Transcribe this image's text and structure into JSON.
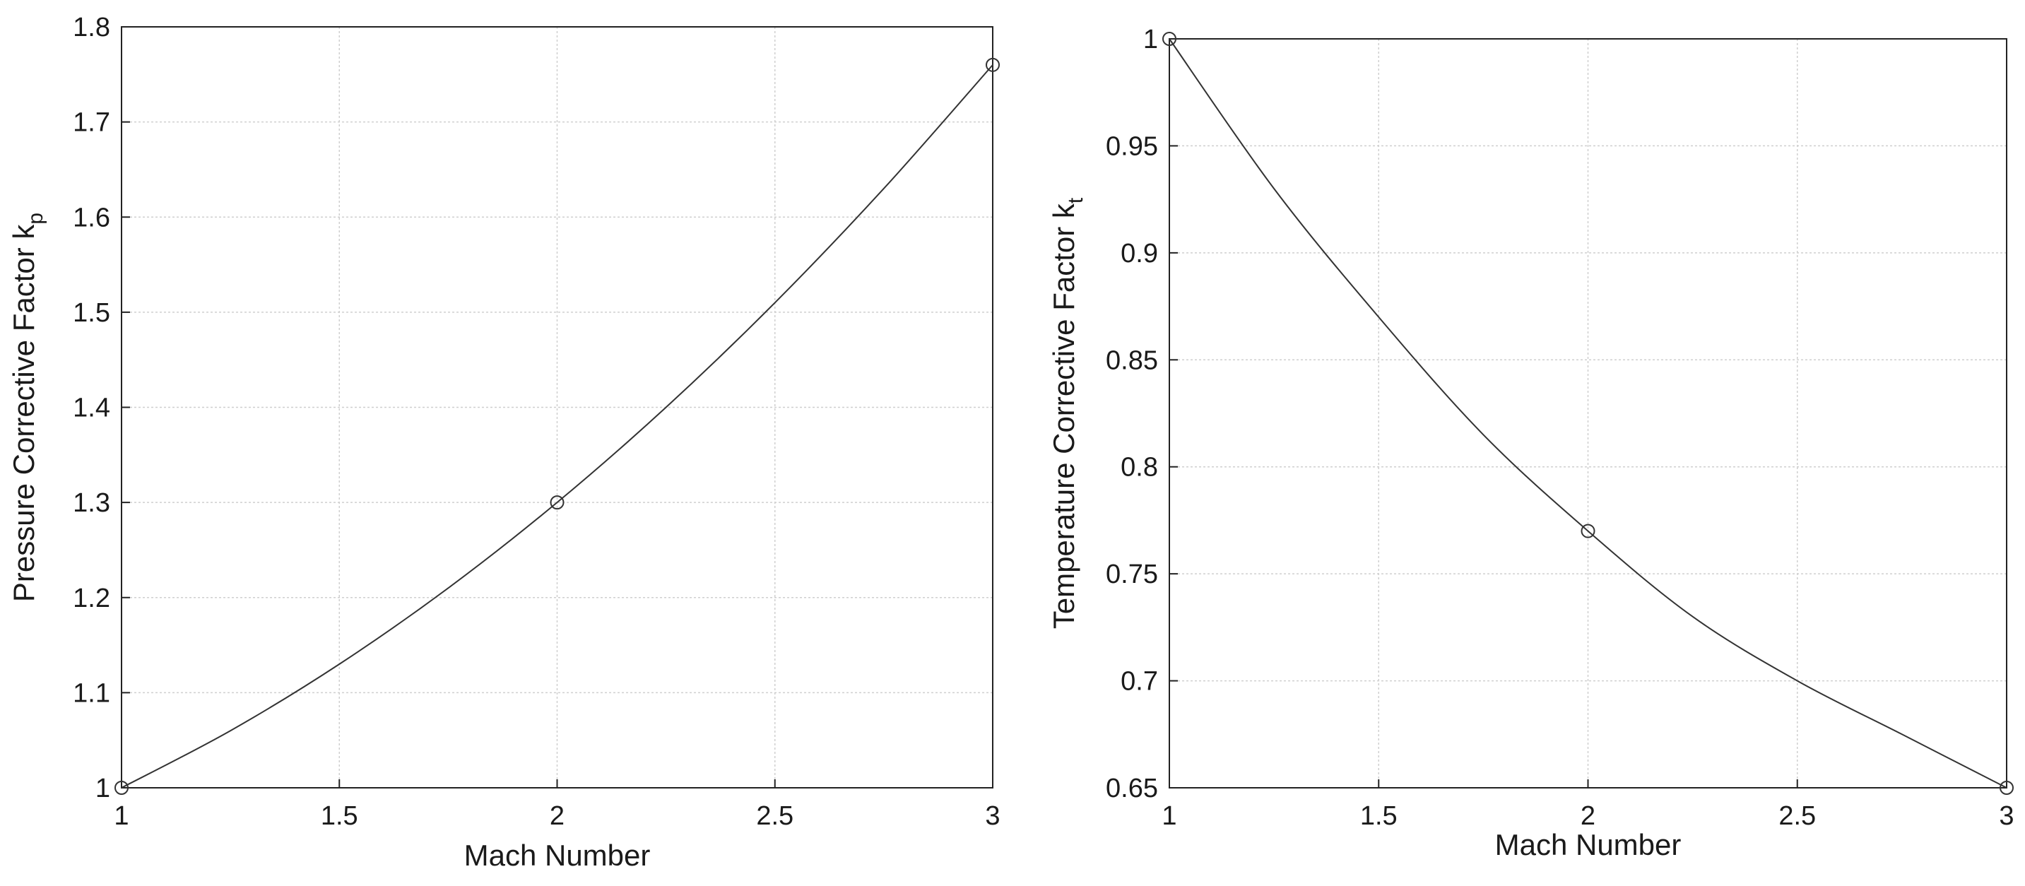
{
  "chart_data": [
    {
      "type": "line",
      "xlabel": "Mach Number",
      "ylabel": "Pressure Corrective Factor k",
      "ylabel_subscript": "p",
      "xlim": [
        1,
        3
      ],
      "ylim": [
        1,
        1.8
      ],
      "xticks": [
        1,
        1.5,
        2,
        2.5,
        3
      ],
      "xtick_labels": [
        "1",
        "1.5",
        "2",
        "2.5",
        "3"
      ],
      "yticks": [
        1,
        1.1,
        1.2,
        1.3,
        1.4,
        1.5,
        1.6,
        1.7,
        1.8
      ],
      "ytick_labels": [
        "1",
        "1.1",
        "1.2",
        "1.3",
        "1.4",
        "1.5",
        "1.6",
        "1.7",
        "1.8"
      ],
      "grid": true,
      "series": [
        {
          "x": [
            1.0,
            1.25,
            1.5,
            1.75,
            2.0,
            2.25,
            2.5,
            2.75,
            3.0
          ],
          "values": [
            1.0,
            1.06,
            1.13,
            1.21,
            1.3,
            1.4,
            1.51,
            1.63,
            1.76
          ],
          "markers": {
            "x": [
              1,
              2,
              3
            ],
            "y": [
              1.0,
              1.3,
              1.76
            ],
            "shape": "circle"
          }
        }
      ]
    },
    {
      "type": "line",
      "xlabel": "Mach Number",
      "ylabel": "Temperature Corrective Factor k",
      "ylabel_subscript": "t",
      "xlim": [
        1,
        3
      ],
      "ylim": [
        0.65,
        1.0
      ],
      "xticks": [
        1,
        1.5,
        2,
        2.5,
        3
      ],
      "xtick_labels": [
        "1",
        "1.5",
        "2",
        "2.5",
        "3"
      ],
      "yticks": [
        0.65,
        0.7,
        0.75,
        0.8,
        0.85,
        0.9,
        0.95,
        1.0
      ],
      "ytick_labels": [
        "0.65",
        "0.7",
        "0.75",
        "0.8",
        "0.85",
        "0.9",
        "0.95",
        "1"
      ],
      "grid": true,
      "series": [
        {
          "x": [
            1.0,
            1.25,
            1.5,
            1.75,
            2.0,
            2.25,
            2.5,
            2.75,
            3.0
          ],
          "values": [
            1.0,
            0.93,
            0.87,
            0.815,
            0.77,
            0.73,
            0.7,
            0.675,
            0.65
          ],
          "markers": {
            "x": [
              1,
              2,
              3
            ],
            "y": [
              1.0,
              0.77,
              0.65
            ],
            "shape": "circle"
          }
        }
      ]
    }
  ],
  "colors": {
    "line": "#333333",
    "grid": "#cfcfcf",
    "frame": "#222222",
    "text": "#1a1a1a"
  }
}
